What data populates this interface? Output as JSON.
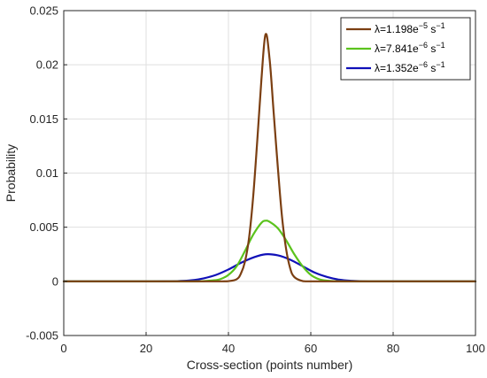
{
  "chart_data": {
    "type": "line",
    "title": "",
    "xlabel": "Cross-section (points number)",
    "ylabel": "Probability",
    "xlim": [
      0,
      100
    ],
    "ylim": [
      -0.005,
      0.025
    ],
    "xticks": [
      0,
      20,
      40,
      60,
      80,
      100
    ],
    "yticks": [
      -0.005,
      0,
      0.005,
      0.01,
      0.015,
      0.02,
      0.025
    ],
    "xtick_labels": [
      "0",
      "20",
      "40",
      "60",
      "80",
      "100"
    ],
    "ytick_labels": [
      "-0.005",
      "0",
      "0.005",
      "0.01",
      "0.015",
      "0.02",
      "0.025"
    ],
    "grid": true,
    "legend_position": "top-right",
    "series": [
      {
        "name": "λ=1.198e−5 s−1",
        "name_parts": {
          "pre": "λ=1.198e",
          "exp1": "−5",
          "mid": " s",
          "exp2": "−1"
        },
        "color": "#7B3F12",
        "x": [
          0,
          38,
          40,
          42,
          43,
          44,
          45,
          46,
          47,
          48,
          49,
          50,
          51,
          52,
          53,
          54,
          55,
          56,
          58,
          60,
          100
        ],
        "y": [
          0,
          0,
          2e-05,
          0.0002,
          0.0007,
          0.0018,
          0.004,
          0.0078,
          0.013,
          0.0186,
          0.0228,
          0.0205,
          0.0155,
          0.0105,
          0.006,
          0.003,
          0.0012,
          0.0004,
          3e-05,
          0,
          0
        ]
      },
      {
        "name": "λ=7.841e−6 s−1",
        "name_parts": {
          "pre": "λ=7.841e",
          "exp1": "−6",
          "mid": " s",
          "exp2": "−1"
        },
        "color": "#5BC31D",
        "x": [
          0,
          30,
          33,
          36,
          38,
          40,
          42,
          44,
          46,
          48,
          49,
          50,
          52,
          54,
          56,
          58,
          60,
          62,
          64,
          67,
          70,
          100
        ],
        "y": [
          0,
          0,
          1e-05,
          8e-05,
          0.0002,
          0.0006,
          0.0014,
          0.0028,
          0.0043,
          0.0054,
          0.0056,
          0.0055,
          0.0049,
          0.0038,
          0.0025,
          0.0014,
          0.0006,
          0.0002,
          6e-05,
          1e-05,
          0,
          0
        ]
      },
      {
        "name": "λ=1.352e−6 s−1",
        "name_parts": {
          "pre": "λ=1.352e",
          "exp1": "−6",
          "mid": " s",
          "exp2": "−1"
        },
        "color": "#1010B8",
        "x": [
          0,
          20,
          25,
          28,
          31,
          34,
          37,
          40,
          43,
          46,
          49,
          52,
          55,
          58,
          61,
          64,
          67,
          70,
          73,
          76,
          80,
          100
        ],
        "y": [
          0,
          0,
          1e-05,
          3e-05,
          0.0001,
          0.00028,
          0.0006,
          0.0011,
          0.0017,
          0.0022,
          0.0025,
          0.0024,
          0.002,
          0.0014,
          0.0008,
          0.0004,
          0.00015,
          5e-05,
          1e-05,
          0,
          0,
          0
        ]
      }
    ]
  }
}
